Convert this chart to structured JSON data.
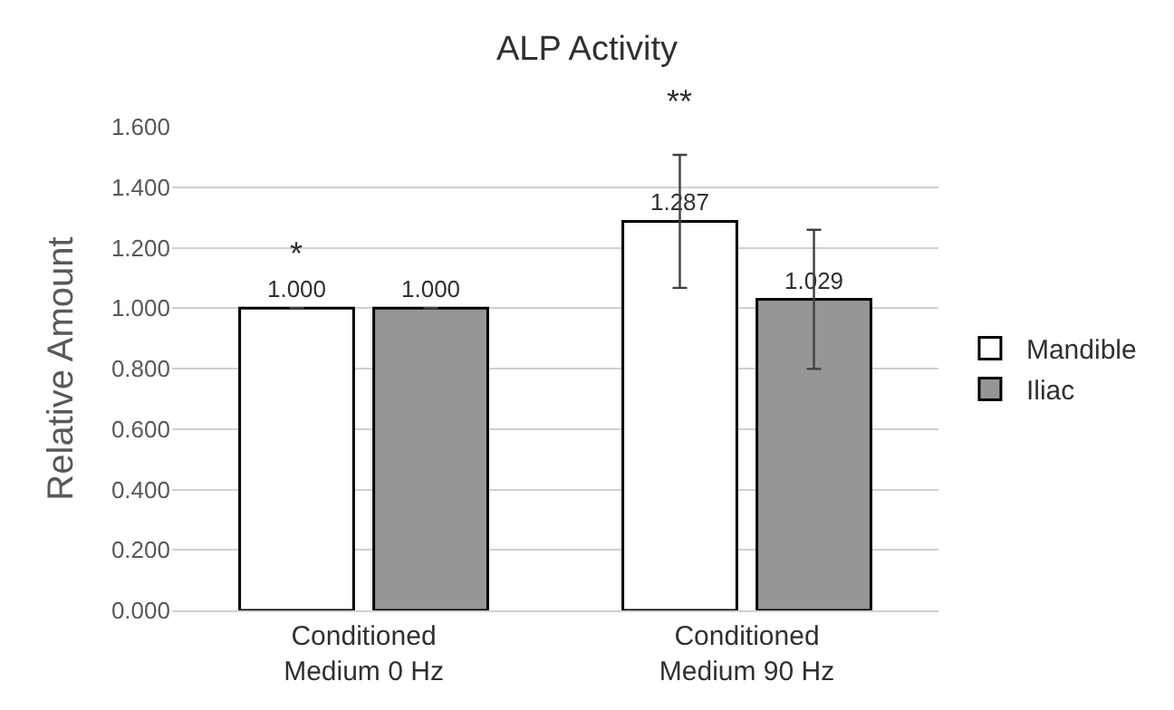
{
  "chart_data": {
    "type": "bar",
    "title": "ALP Activity",
    "ylabel": "Relative Amount",
    "categories": [
      "Conditioned\nMedium 0 Hz",
      "Conditioned\nMedium 90 Hz"
    ],
    "series": [
      {
        "name": "Mandible",
        "color": "#ffffff",
        "values": [
          1.0,
          1.287
        ],
        "errors": [
          null,
          0.22
        ],
        "value_labels": [
          "1.000",
          "1.287"
        ]
      },
      {
        "name": "Iliac",
        "color": "#969696",
        "values": [
          1.0,
          1.029
        ],
        "errors": [
          null,
          0.23
        ],
        "value_labels": [
          "1.000",
          "1.029"
        ]
      }
    ],
    "annotations": [
      "*",
      "**"
    ],
    "ylim": [
      0,
      1.6
    ],
    "yticks": [
      {
        "value": 0,
        "label": "0.000"
      },
      {
        "value": 0.2,
        "label": "0.200"
      },
      {
        "value": 0.4,
        "label": "0.400"
      },
      {
        "value": 0.6,
        "label": "0.600"
      },
      {
        "value": 0.8,
        "label": "0.800"
      },
      {
        "value": 1.0,
        "label": "1.000"
      },
      {
        "value": 1.2,
        "label": "1.200"
      },
      {
        "value": 1.4,
        "label": "1.400"
      },
      {
        "value": 1.6,
        "label": "1.600"
      }
    ],
    "grid": "y",
    "legend": "right"
  }
}
